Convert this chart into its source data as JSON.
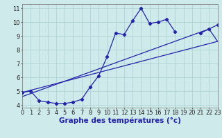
{
  "xlabel": "Graphe des températures (°c)",
  "hours": [
    0,
    1,
    2,
    3,
    4,
    5,
    6,
    7,
    8,
    9,
    10,
    11,
    12,
    13,
    14,
    15,
    16,
    17,
    18,
    19,
    20,
    21,
    22,
    23
  ],
  "temp_main": [
    4.9,
    5.0,
    4.3,
    4.2,
    4.1,
    4.1,
    4.2,
    4.4,
    5.3,
    6.1,
    7.5,
    9.2,
    9.1,
    10.1,
    11.0,
    9.9,
    10.0,
    10.2,
    9.3,
    null,
    null,
    9.2,
    9.5,
    9.8
  ],
  "line1_x": [
    0,
    23
  ],
  "line1_y": [
    4.9,
    8.6
  ],
  "line2_x": [
    0,
    22,
    23
  ],
  "line2_y": [
    4.6,
    9.5,
    8.6
  ],
  "xlim": [
    0,
    23
  ],
  "ylim": [
    3.8,
    11.3
  ],
  "yticks": [
    4,
    5,
    6,
    7,
    8,
    9,
    10,
    11
  ],
  "xticks": [
    0,
    1,
    2,
    3,
    4,
    5,
    6,
    7,
    8,
    9,
    10,
    11,
    12,
    13,
    14,
    15,
    16,
    17,
    18,
    19,
    20,
    21,
    22,
    23
  ],
  "line_color": "#2222aa",
  "bg_color": "#ceeaea",
  "grid_color": "#aacece",
  "marker": "D",
  "marker_size": 2.2,
  "line_width": 0.9,
  "xlabel_fontsize": 7.5,
  "tick_fontsize": 6.0
}
